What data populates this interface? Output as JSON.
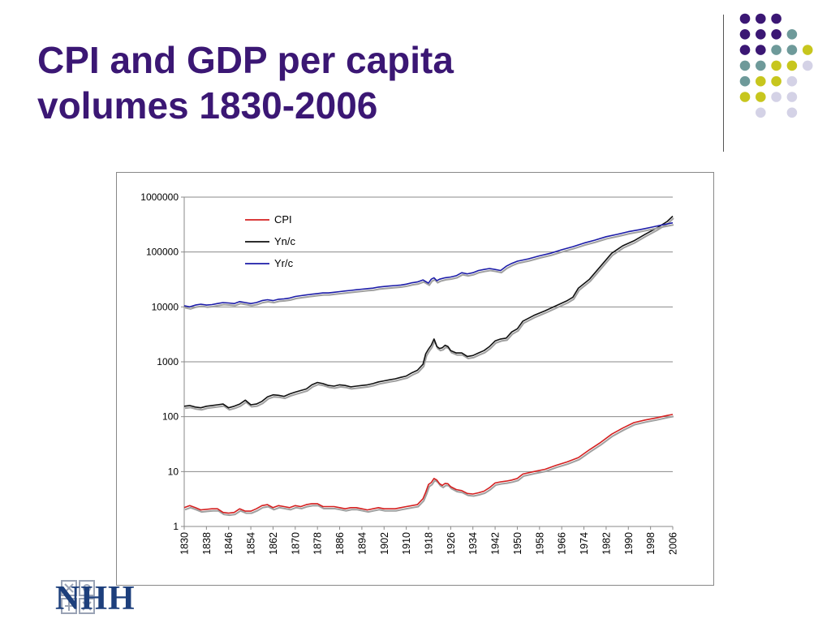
{
  "slide": {
    "title_line1": "CPI and GDP per capita",
    "title_line2": "volumes 1830-2006",
    "logo_text": "NHH",
    "colors": {
      "title": "#3b1774",
      "purple": "#3b1774",
      "teal": "#6e9a9a",
      "yellow": "#c7c61e",
      "lavender": "#d4d2e6",
      "logo_blue": "#1d3f7c"
    },
    "dot_pattern": [
      "P P P . .",
      "P P P T .",
      "P P T T Y",
      "T T Y Y L",
      "T Y Y L .",
      "Y Y L L .",
      ". L . L ."
    ]
  },
  "chart_data": {
    "type": "line",
    "title": "",
    "xlabel": "",
    "ylabel": "",
    "yscale": "log",
    "ylim": [
      1,
      1000000
    ],
    "xlim": [
      1830,
      2006
    ],
    "y_ticks": [
      "1",
      "10",
      "100",
      "1000",
      "10000",
      "100000",
      "1000000"
    ],
    "x_ticks": [
      "1830",
      "1838",
      "1846",
      "1854",
      "1862",
      "1870",
      "1878",
      "1886",
      "1894",
      "1902",
      "1910",
      "1918",
      "1926",
      "1934",
      "1942",
      "1950",
      "1958",
      "1966",
      "1974",
      "1982",
      "1990",
      "1998",
      "2006"
    ],
    "grid": "horizontal",
    "legend_position": "top-left",
    "series": [
      {
        "name": "CPI",
        "color": "#d42020",
        "points": [
          [
            1830,
            2.2
          ],
          [
            1832,
            2.4
          ],
          [
            1834,
            2.2
          ],
          [
            1836,
            2.0
          ],
          [
            1840,
            2.1
          ],
          [
            1842,
            2.1
          ],
          [
            1844,
            1.8
          ],
          [
            1846,
            1.75
          ],
          [
            1848,
            1.8
          ],
          [
            1850,
            2.1
          ],
          [
            1852,
            1.9
          ],
          [
            1854,
            1.9
          ],
          [
            1856,
            2.1
          ],
          [
            1858,
            2.4
          ],
          [
            1860,
            2.5
          ],
          [
            1862,
            2.2
          ],
          [
            1864,
            2.4
          ],
          [
            1866,
            2.3
          ],
          [
            1868,
            2.2
          ],
          [
            1870,
            2.4
          ],
          [
            1872,
            2.3
          ],
          [
            1874,
            2.5
          ],
          [
            1876,
            2.6
          ],
          [
            1878,
            2.6
          ],
          [
            1880,
            2.3
          ],
          [
            1882,
            2.3
          ],
          [
            1884,
            2.3
          ],
          [
            1886,
            2.2
          ],
          [
            1888,
            2.1
          ],
          [
            1890,
            2.2
          ],
          [
            1892,
            2.2
          ],
          [
            1894,
            2.1
          ],
          [
            1896,
            2.0
          ],
          [
            1898,
            2.1
          ],
          [
            1900,
            2.2
          ],
          [
            1902,
            2.1
          ],
          [
            1904,
            2.1
          ],
          [
            1906,
            2.1
          ],
          [
            1908,
            2.2
          ],
          [
            1910,
            2.3
          ],
          [
            1912,
            2.4
          ],
          [
            1914,
            2.5
          ],
          [
            1916,
            3.2
          ],
          [
            1917,
            4.2
          ],
          [
            1918,
            5.8
          ],
          [
            1919,
            6.3
          ],
          [
            1920,
            7.5
          ],
          [
            1921,
            7.0
          ],
          [
            1922,
            6.0
          ],
          [
            1923,
            5.6
          ],
          [
            1924,
            6.1
          ],
          [
            1925,
            6.0
          ],
          [
            1926,
            5.3
          ],
          [
            1928,
            4.7
          ],
          [
            1930,
            4.5
          ],
          [
            1932,
            4.0
          ],
          [
            1934,
            3.9
          ],
          [
            1936,
            4.1
          ],
          [
            1938,
            4.4
          ],
          [
            1940,
            5.1
          ],
          [
            1942,
            6.2
          ],
          [
            1944,
            6.5
          ],
          [
            1946,
            6.7
          ],
          [
            1948,
            7.0
          ],
          [
            1950,
            7.5
          ],
          [
            1952,
            9.0
          ],
          [
            1956,
            10.0
          ],
          [
            1960,
            11.0
          ],
          [
            1964,
            13.0
          ],
          [
            1968,
            15.0
          ],
          [
            1972,
            18.0
          ],
          [
            1976,
            25.0
          ],
          [
            1980,
            34.0
          ],
          [
            1984,
            48.0
          ],
          [
            1988,
            62.0
          ],
          [
            1992,
            78.0
          ],
          [
            1996,
            87.0
          ],
          [
            2000,
            95.0
          ],
          [
            2004,
            105.0
          ],
          [
            2006,
            110.0
          ]
        ]
      },
      {
        "name": "Yn/c",
        "color": "#111111",
        "points": [
          [
            1830,
            155
          ],
          [
            1832,
            160
          ],
          [
            1834,
            150
          ],
          [
            1836,
            145
          ],
          [
            1838,
            155
          ],
          [
            1840,
            160
          ],
          [
            1842,
            165
          ],
          [
            1844,
            170
          ],
          [
            1846,
            145
          ],
          [
            1848,
            155
          ],
          [
            1850,
            170
          ],
          [
            1852,
            200
          ],
          [
            1854,
            165
          ],
          [
            1856,
            170
          ],
          [
            1858,
            190
          ],
          [
            1860,
            230
          ],
          [
            1862,
            250
          ],
          [
            1864,
            245
          ],
          [
            1866,
            235
          ],
          [
            1868,
            260
          ],
          [
            1870,
            280
          ],
          [
            1872,
            300
          ],
          [
            1874,
            320
          ],
          [
            1876,
            380
          ],
          [
            1878,
            420
          ],
          [
            1880,
            400
          ],
          [
            1882,
            370
          ],
          [
            1884,
            360
          ],
          [
            1886,
            380
          ],
          [
            1888,
            370
          ],
          [
            1890,
            350
          ],
          [
            1892,
            360
          ],
          [
            1894,
            370
          ],
          [
            1896,
            380
          ],
          [
            1898,
            400
          ],
          [
            1900,
            430
          ],
          [
            1902,
            450
          ],
          [
            1904,
            470
          ],
          [
            1906,
            490
          ],
          [
            1908,
            520
          ],
          [
            1910,
            550
          ],
          [
            1912,
            630
          ],
          [
            1914,
            700
          ],
          [
            1916,
            900
          ],
          [
            1917,
            1400
          ],
          [
            1918,
            1700
          ],
          [
            1919,
            2000
          ],
          [
            1920,
            2600
          ],
          [
            1921,
            1900
          ],
          [
            1922,
            1750
          ],
          [
            1923,
            1800
          ],
          [
            1924,
            2000
          ],
          [
            1925,
            1900
          ],
          [
            1926,
            1600
          ],
          [
            1928,
            1450
          ],
          [
            1930,
            1450
          ],
          [
            1932,
            1250
          ],
          [
            1934,
            1300
          ],
          [
            1936,
            1450
          ],
          [
            1938,
            1600
          ],
          [
            1940,
            1900
          ],
          [
            1942,
            2400
          ],
          [
            1944,
            2600
          ],
          [
            1946,
            2700
          ],
          [
            1948,
            3500
          ],
          [
            1950,
            4000
          ],
          [
            1952,
            5500
          ],
          [
            1956,
            7000
          ],
          [
            1960,
            8500
          ],
          [
            1964,
            10500
          ],
          [
            1968,
            13000
          ],
          [
            1970,
            15000
          ],
          [
            1972,
            22000
          ],
          [
            1976,
            32000
          ],
          [
            1980,
            55000
          ],
          [
            1984,
            95000
          ],
          [
            1988,
            130000
          ],
          [
            1992,
            160000
          ],
          [
            1996,
            210000
          ],
          [
            2000,
            270000
          ],
          [
            2004,
            360000
          ],
          [
            2006,
            450000
          ]
        ]
      },
      {
        "name": "Yr/c",
        "color": "#1c1ca8",
        "points": [
          [
            1830,
            10500
          ],
          [
            1832,
            10000
          ],
          [
            1834,
            10800
          ],
          [
            1836,
            11200
          ],
          [
            1838,
            10800
          ],
          [
            1840,
            11000
          ],
          [
            1842,
            11500
          ],
          [
            1844,
            12000
          ],
          [
            1846,
            11800
          ],
          [
            1848,
            11500
          ],
          [
            1850,
            12500
          ],
          [
            1852,
            12000
          ],
          [
            1854,
            11500
          ],
          [
            1856,
            12000
          ],
          [
            1858,
            13000
          ],
          [
            1860,
            13500
          ],
          [
            1862,
            13000
          ],
          [
            1864,
            13800
          ],
          [
            1866,
            14000
          ],
          [
            1868,
            14500
          ],
          [
            1870,
            15500
          ],
          [
            1872,
            16000
          ],
          [
            1874,
            16500
          ],
          [
            1876,
            17000
          ],
          [
            1878,
            17500
          ],
          [
            1880,
            18000
          ],
          [
            1882,
            18000
          ],
          [
            1884,
            18500
          ],
          [
            1886,
            19000
          ],
          [
            1888,
            19500
          ],
          [
            1890,
            20000
          ],
          [
            1892,
            20500
          ],
          [
            1894,
            21000
          ],
          [
            1896,
            21500
          ],
          [
            1898,
            22000
          ],
          [
            1900,
            23000
          ],
          [
            1902,
            23500
          ],
          [
            1904,
            24000
          ],
          [
            1906,
            24500
          ],
          [
            1908,
            25000
          ],
          [
            1910,
            26000
          ],
          [
            1912,
            27500
          ],
          [
            1914,
            28500
          ],
          [
            1916,
            31000
          ],
          [
            1918,
            27000
          ],
          [
            1919,
            32000
          ],
          [
            1920,
            34000
          ],
          [
            1921,
            30000
          ],
          [
            1922,
            32000
          ],
          [
            1924,
            34000
          ],
          [
            1926,
            35000
          ],
          [
            1928,
            37000
          ],
          [
            1930,
            42000
          ],
          [
            1932,
            40000
          ],
          [
            1934,
            42000
          ],
          [
            1936,
            46000
          ],
          [
            1938,
            48000
          ],
          [
            1940,
            50000
          ],
          [
            1942,
            48000
          ],
          [
            1944,
            46000
          ],
          [
            1946,
            55000
          ],
          [
            1948,
            62000
          ],
          [
            1950,
            68000
          ],
          [
            1954,
            75000
          ],
          [
            1958,
            85000
          ],
          [
            1962,
            95000
          ],
          [
            1966,
            110000
          ],
          [
            1970,
            125000
          ],
          [
            1974,
            145000
          ],
          [
            1978,
            165000
          ],
          [
            1982,
            190000
          ],
          [
            1986,
            210000
          ],
          [
            1990,
            235000
          ],
          [
            1994,
            255000
          ],
          [
            1998,
            280000
          ],
          [
            2002,
            310000
          ],
          [
            2006,
            340000
          ]
        ]
      }
    ]
  }
}
